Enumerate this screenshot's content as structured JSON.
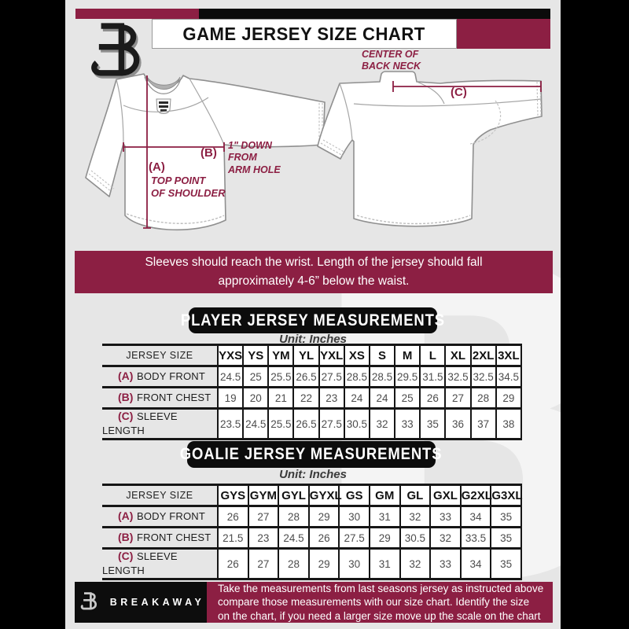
{
  "colors": {
    "background": "#e6e6e6",
    "maroon": "#8c1f43",
    "black": "#0d0d0d",
    "measure_line": "#8c1f43"
  },
  "watermark": {
    "letter": "B"
  },
  "header": {
    "title": "GAME JERSEY SIZE CHART",
    "logo": "breakaway-b-logo"
  },
  "diagram": {
    "marker_a": "(A)",
    "top_point_caption": "TOP POINT\nOF SHOULDER",
    "marker_b": "(B)",
    "arm_hole_caption": "1\" DOWN\nFROM\nARM HOLE",
    "marker_c": "(C)",
    "center_back_neck_caption": "CENTER OF\nBACK NECK"
  },
  "banner": {
    "text": "Sleeves should reach the wrist. Length of the jersey should fall\napproximately 4-6” below the waist."
  },
  "player_table": {
    "title": "PLAYER JERSEY MEASUREMENTS",
    "unit": "Unit: Inches",
    "size_header": "JERSEY SIZE",
    "columns": [
      "YXS",
      "YS",
      "YM",
      "YL",
      "YXL",
      "XS",
      "S",
      "M",
      "L",
      "XL",
      "2XL",
      "3XL"
    ],
    "rows": [
      {
        "marker": "(A)",
        "label": "BODY FRONT",
        "values": [
          "24.5",
          "25",
          "25.5",
          "26.5",
          "27.5",
          "28.5",
          "28.5",
          "29.5",
          "31.5",
          "32.5",
          "32.5",
          "34.5"
        ]
      },
      {
        "marker": "(B)",
        "label": "FRONT CHEST",
        "values": [
          "19",
          "20",
          "21",
          "22",
          "23",
          "24",
          "24",
          "25",
          "26",
          "27",
          "28",
          "29"
        ]
      },
      {
        "marker": "(C)",
        "label": "SLEEVE LENGTH",
        "values": [
          "23.5",
          "24.5",
          "25.5",
          "26.5",
          "27.5",
          "30.5",
          "32",
          "33",
          "35",
          "36",
          "37",
          "38"
        ]
      }
    ]
  },
  "goalie_table": {
    "title": "GOALIE JERSEY MEASUREMENTS",
    "unit": "Unit: Inches",
    "size_header": "JERSEY SIZE",
    "columns": [
      "GYS",
      "GYM",
      "GYL",
      "GYXL",
      "GS",
      "GM",
      "GL",
      "GXL",
      "G2XL",
      "G3XL"
    ],
    "rows": [
      {
        "marker": "(A)",
        "label": "BODY FRONT",
        "values": [
          "26",
          "27",
          "28",
          "29",
          "30",
          "31",
          "32",
          "33",
          "34",
          "35"
        ]
      },
      {
        "marker": "(B)",
        "label": "FRONT CHEST",
        "values": [
          "21.5",
          "23",
          "24.5",
          "26",
          "27.5",
          "29",
          "30.5",
          "32",
          "33.5",
          "35"
        ]
      },
      {
        "marker": "(C)",
        "label": "SLEEVE LENGTH",
        "values": [
          "26",
          "27",
          "28",
          "29",
          "30",
          "31",
          "32",
          "33",
          "34",
          "35"
        ]
      }
    ]
  },
  "footer": {
    "brand": "BREAKAWAY",
    "note": "Take the measurements from last seasons jersey as instructed above\ncompare those measurements  with our size chart. Identify the size\non the chart, if you need a larger size move up the scale on the chart"
  }
}
